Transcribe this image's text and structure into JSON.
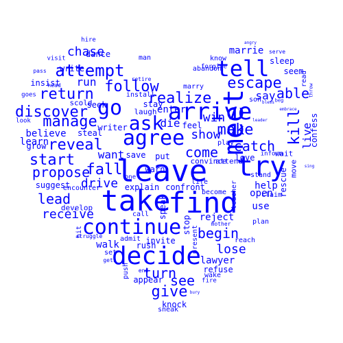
{
  "color": "#0000ff",
  "shape": "heart",
  "words": [
    "leave",
    "take",
    "find",
    "meet",
    "decide",
    "try",
    "tell",
    "arrive",
    "continue",
    "agree",
    "go",
    "ask",
    "attempt",
    "return",
    "discover",
    "reveal",
    "manage",
    "escape",
    "kill",
    "make",
    "follow",
    "realize",
    "fall",
    "start",
    "begin",
    "give",
    "come",
    "catch",
    "show",
    "win",
    "live",
    "lead",
    "propose",
    "able",
    "turn",
    "see",
    "lose",
    "chase",
    "receive",
    "drive",
    "marrie",
    "help",
    "use",
    "run",
    "want",
    "die",
    "say",
    "reject",
    "lawyer",
    "open",
    "suggest",
    "knock",
    "explain",
    "believe",
    "learn",
    "walk",
    "walk",
    "enter",
    "stay",
    "save",
    "put",
    "love",
    "refuse",
    "confront",
    "speak",
    "invite",
    "grow",
    "insist",
    "warn",
    "write",
    "writer",
    "dance",
    "hire",
    "visit",
    "steal",
    "seek",
    "scold",
    "laugh",
    "feel",
    "plan",
    "reach",
    "claim",
    "become",
    "stand",
    "rescue",
    "confess",
    "sleep",
    "seem",
    "marry",
    "install",
    "retire",
    "play",
    "inform",
    "convince",
    "attend",
    "develop",
    "encounter",
    "push",
    "set",
    "end",
    "sneak",
    "appear",
    "wake",
    "fire",
    "rush",
    "admit",
    "call",
    "stop",
    "present",
    "serve",
    "know",
    "forgive",
    "abandon",
    "mother",
    "teacher",
    "wait",
    "move",
    "read",
    "goes",
    "pass",
    "head",
    "look",
    "one",
    "hit",
    "struggle",
    "gets",
    "get",
    "son",
    "life",
    "man",
    "sleep",
    "bury",
    "sing",
    "bless",
    "beg",
    "embrace",
    "throw",
    "angry",
    "leader"
  ]
}
